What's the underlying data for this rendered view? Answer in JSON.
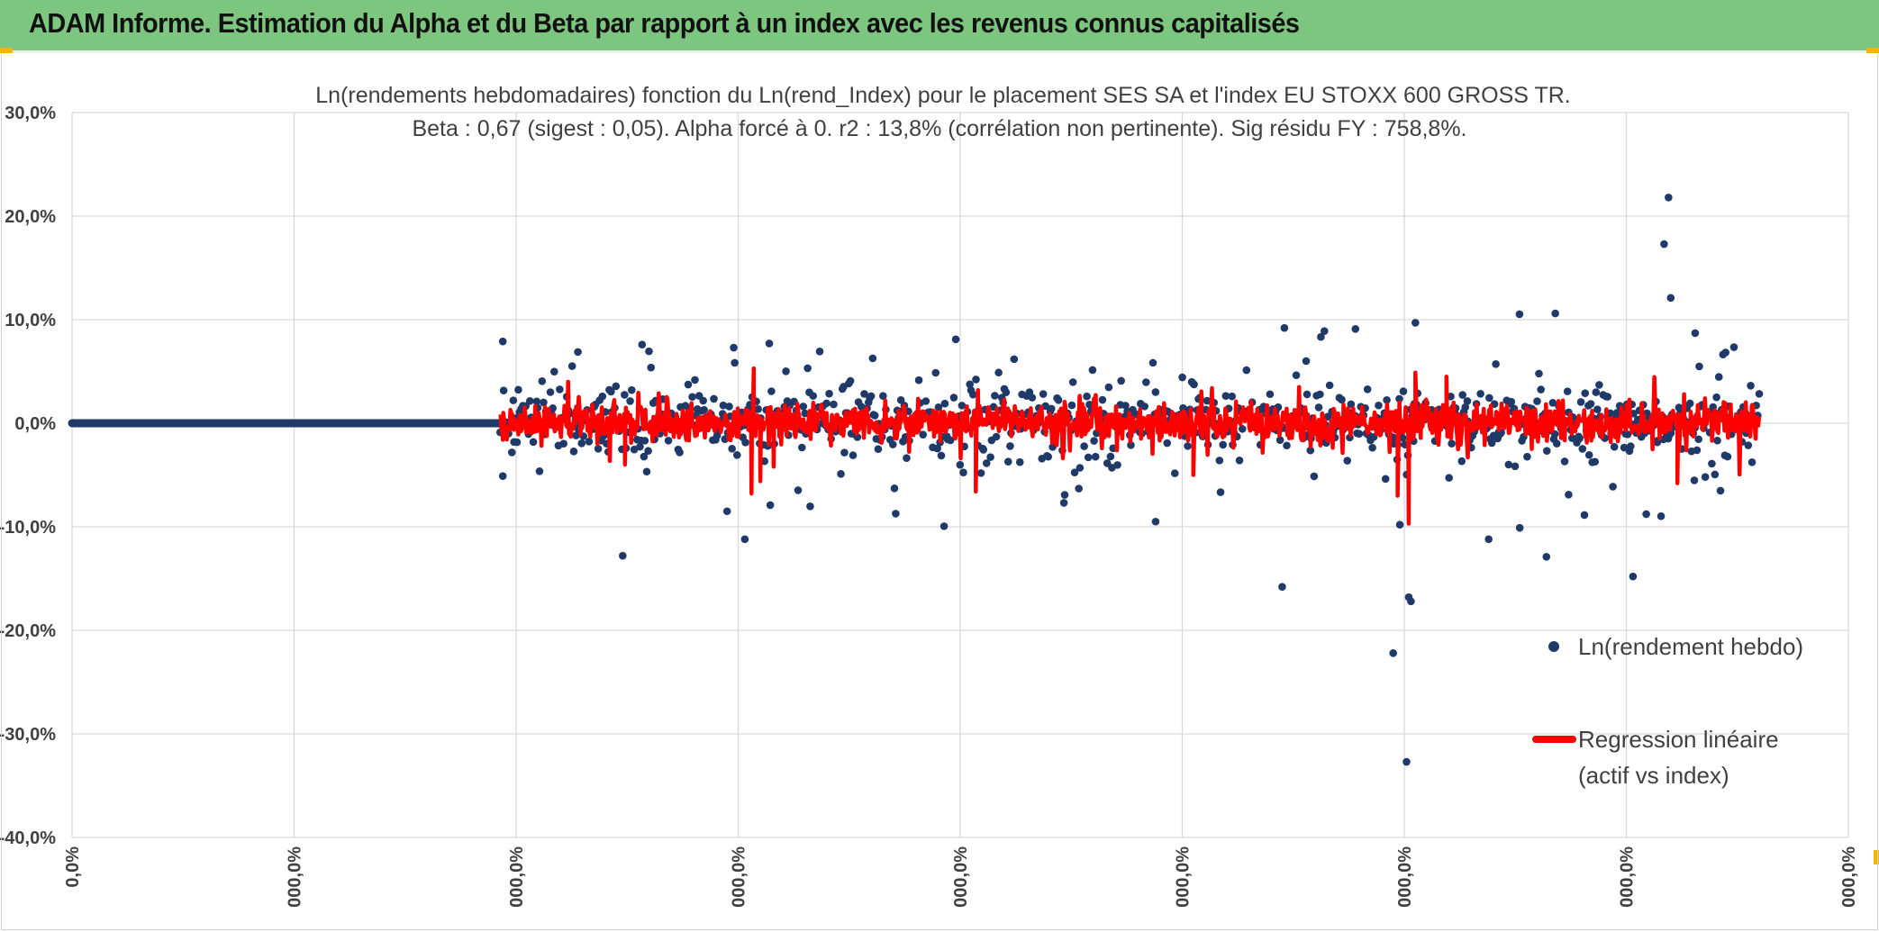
{
  "banner": {
    "title": "ADAM Informe. Estimation du Alpha et du Beta par rapport à un index avec les revenus connus capitalisés"
  },
  "colors": {
    "banner_bg": "#7dc67f",
    "accent_corner": "#f2b705",
    "points": "#1f3a68",
    "regression": "#ff0000",
    "grid": "#d9d9d9",
    "text": "#404040"
  },
  "chart_data": {
    "type": "scatter",
    "title": "Ln(rendements hebdomadaires) fonction du Ln(rend_Index) pour le placement SES SA et l'index EU STOXX 600 GROSS TR.",
    "subtitle": "Beta : 0,67 (sigest : 0,05). Alpha forcé à 0. r2 : 13,8% (corrélation non pertinente). Sig résidu FY : 758,8%.",
    "xlabel": "",
    "ylabel": "",
    "ylim": [
      -40,
      30
    ],
    "y_ticks": [
      "30,0%",
      "20,0%",
      "10,0%",
      "0,0%",
      "-10,0%",
      "-20,0%",
      "-30,0%",
      "-40,0%"
    ],
    "x_ticks": [
      "0,0%",
      "000,0%",
      "000,0%",
      "000,0%",
      "000,0%",
      "000,0%",
      "000,0%",
      "000,0%",
      "000,0%"
    ],
    "grid": true,
    "legend_position": "right",
    "series": [
      {
        "name": "Ln(rendement hebdo)",
        "kind": "scatter",
        "flat_segment": {
          "x_start": 0,
          "x_end": 1.93,
          "y": 0
        },
        "active_x_range": [
          1.93,
          7.6
        ],
        "typical_spread_pct": 3.5,
        "outliers": [
          {
            "x": 1.94,
            "y": 7.9
          },
          {
            "x": 1.94,
            "y": -5.1
          },
          {
            "x": 2.48,
            "y": -12.8
          },
          {
            "x": 2.95,
            "y": -8.5
          },
          {
            "x": 3.03,
            "y": -11.2
          },
          {
            "x": 2.98,
            "y": 7.3
          },
          {
            "x": 3.14,
            "y": 7.7
          },
          {
            "x": 3.98,
            "y": 8.1
          },
          {
            "x": 4.88,
            "y": -9.5
          },
          {
            "x": 5.45,
            "y": -15.8
          },
          {
            "x": 5.46,
            "y": 9.2
          },
          {
            "x": 5.95,
            "y": -22.2
          },
          {
            "x": 6.01,
            "y": -32.7
          },
          {
            "x": 6.02,
            "y": -16.8
          },
          {
            "x": 6.03,
            "y": -17.2
          },
          {
            "x": 5.98,
            "y": -9.8
          },
          {
            "x": 6.05,
            "y": 9.7
          },
          {
            "x": 6.38,
            "y": -11.2
          },
          {
            "x": 6.52,
            "y": -10.1
          },
          {
            "x": 6.64,
            "y": -12.9
          },
          {
            "x": 6.68,
            "y": 10.6
          },
          {
            "x": 7.03,
            "y": -14.8
          },
          {
            "x": 7.17,
            "y": 17.3
          },
          {
            "x": 7.19,
            "y": 21.8
          },
          {
            "x": 7.2,
            "y": 12.1
          },
          {
            "x": 7.31,
            "y": 8.7
          },
          {
            "x": 6.74,
            "y": -6.9
          },
          {
            "x": 5.78,
            "y": 9.1
          },
          {
            "x": 5.64,
            "y": 8.9
          }
        ]
      },
      {
        "name": "Regression linéaire\n(actif vs index)",
        "legend_lines": [
          "Regression linéaire",
          "(actif vs index)"
        ],
        "kind": "line",
        "beta": 0.67,
        "alpha": 0,
        "active_x_range": [
          1.93,
          7.6
        ],
        "spikes": [
          {
            "x": 1.94,
            "y": -1.6
          },
          {
            "x": 2.49,
            "y": -4.0
          },
          {
            "x": 3.06,
            "y": -6.8
          },
          {
            "x": 3.07,
            "y": 5.3
          },
          {
            "x": 3.1,
            "y": -5.6
          },
          {
            "x": 3.16,
            "y": -4.2
          },
          {
            "x": 4.07,
            "y": -6.6
          },
          {
            "x": 4.08,
            "y": 3.2
          },
          {
            "x": 5.05,
            "y": -5.0
          },
          {
            "x": 5.97,
            "y": -7.0
          },
          {
            "x": 6.02,
            "y": -9.7
          },
          {
            "x": 6.05,
            "y": 4.9
          },
          {
            "x": 6.19,
            "y": 4.5
          },
          {
            "x": 7.23,
            "y": -5.8
          },
          {
            "x": 7.26,
            "y": 2.8
          }
        ]
      }
    ]
  }
}
